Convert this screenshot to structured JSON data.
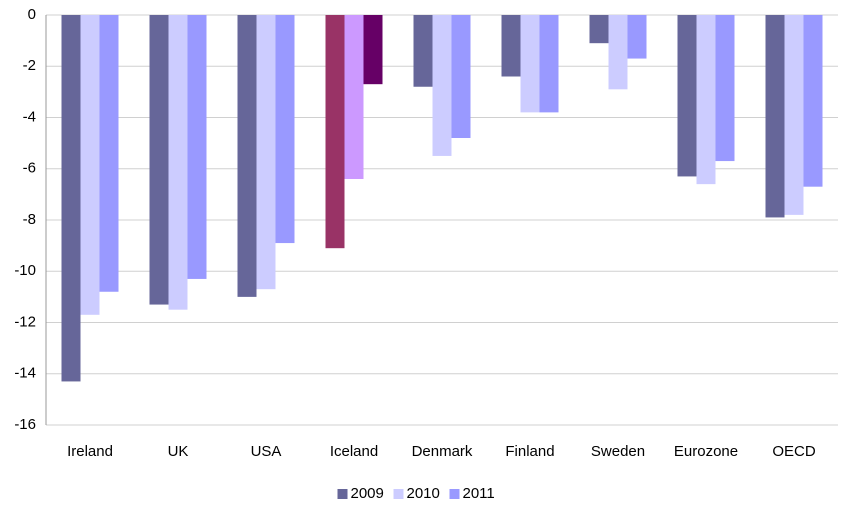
{
  "chart_data": {
    "type": "bar",
    "categories": [
      "Ireland",
      "UK",
      "USA",
      "Iceland",
      "Denmark",
      "Finland",
      "Sweden",
      "Eurozone",
      "OECD"
    ],
    "series": [
      {
        "name": "2009",
        "color": "#666699",
        "colors": [
          "#666699",
          "#666699",
          "#666699",
          "#993366",
          "#666699",
          "#666699",
          "#666699",
          "#666699",
          "#666699"
        ],
        "values": [
          -14.3,
          -11.3,
          -11.0,
          -9.1,
          -2.8,
          -2.4,
          -1.1,
          -6.3,
          -7.9
        ]
      },
      {
        "name": "2010",
        "color": "#ccccff",
        "colors": [
          "#ccccff",
          "#ccccff",
          "#ccccff",
          "#cc99ff",
          "#ccccff",
          "#ccccff",
          "#ccccff",
          "#ccccff",
          "#ccccff"
        ],
        "values": [
          -11.7,
          -11.5,
          -10.7,
          -6.4,
          -5.5,
          -3.8,
          -2.9,
          -6.6,
          -7.8
        ]
      },
      {
        "name": "2011",
        "color": "#9999ff",
        "colors": [
          "#9999ff",
          "#9999ff",
          "#9999ff",
          "#660066",
          "#9999ff",
          "#9999ff",
          "#9999ff",
          "#9999ff",
          "#9999ff"
        ],
        "values": [
          -10.8,
          -10.3,
          -8.9,
          -2.7,
          -4.8,
          -3.8,
          -1.7,
          -5.7,
          -6.7
        ]
      }
    ],
    "ylim": [
      -16,
      0
    ],
    "yticks": [
      0,
      -2,
      -4,
      -6,
      -8,
      -10,
      -12,
      -14,
      -16
    ],
    "grid": true,
    "legend": "bottom"
  }
}
